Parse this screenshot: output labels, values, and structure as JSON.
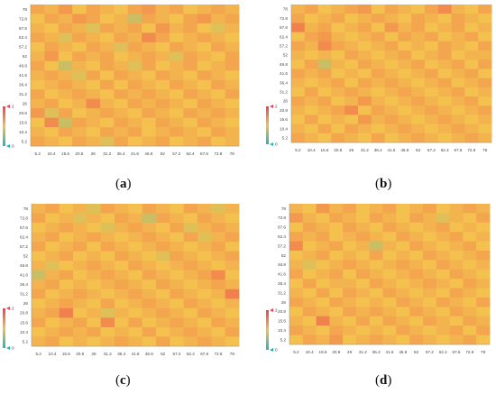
{
  "figure": {
    "panel_labels": [
      "a",
      "b",
      "c",
      "d"
    ]
  },
  "colors": {
    "low": "#1fb8b5",
    "mid": "#f4c04e",
    "high": "#ee3f4f",
    "grid_line": "#e6e6e6"
  },
  "chart_data": [
    {
      "type": "heatmap",
      "x_ticks": [
        "5.2",
        "10.4",
        "15.6",
        "20.8",
        "26",
        "31.2",
        "36.4",
        "41.6",
        "46.8",
        "52",
        "57.2",
        "62.4",
        "67.6",
        "72.8",
        "78"
      ],
      "y_ticks": [
        "78",
        "72.8",
        "67.6",
        "62.4",
        "57.2",
        "52",
        "46.8",
        "41.6",
        "36.4",
        "31.2",
        "26",
        "20.8",
        "15.6",
        "10.4",
        "5.2"
      ],
      "colorbar": {
        "min": 0,
        "max": 2,
        "labels": [
          "2",
          "0"
        ]
      },
      "values": [
        [
          1.2,
          1.1,
          1.3,
          1.0,
          1.2,
          1.1,
          1.0,
          1.2,
          1.3,
          1.1,
          1.2,
          1.0,
          1.1,
          1.2,
          1.1
        ],
        [
          1.0,
          1.2,
          1.1,
          1.3,
          1.2,
          1.0,
          1.1,
          0.8,
          1.2,
          1.1,
          1.0,
          1.2,
          1.3,
          1.1,
          1.2
        ],
        [
          1.1,
          1.0,
          1.2,
          1.1,
          0.9,
          1.2,
          1.1,
          1.2,
          1.0,
          1.3,
          1.1,
          1.2,
          1.0,
          0.9,
          1.1
        ],
        [
          1.2,
          1.1,
          0.9,
          1.2,
          1.1,
          1.0,
          1.2,
          1.1,
          1.4,
          1.2,
          1.0,
          1.1,
          1.2,
          1.1,
          1.0
        ],
        [
          1.0,
          1.2,
          1.1,
          1.0,
          1.2,
          1.1,
          0.9,
          1.2,
          1.1,
          1.0,
          1.2,
          1.1,
          1.0,
          1.2,
          1.1
        ],
        [
          1.1,
          1.3,
          1.0,
          1.2,
          1.1,
          1.2,
          1.0,
          1.1,
          1.2,
          1.1,
          0.9,
          1.2,
          1.1,
          1.0,
          1.2
        ],
        [
          1.2,
          1.0,
          0.8,
          1.1,
          1.0,
          1.2,
          1.1,
          0.9,
          1.2,
          1.0,
          1.1,
          1.2,
          1.0,
          1.1,
          1.2
        ],
        [
          1.1,
          1.2,
          1.1,
          0.9,
          1.2,
          1.0,
          1.2,
          1.1,
          1.0,
          1.2,
          1.1,
          1.0,
          1.2,
          1.1,
          1.0
        ],
        [
          1.0,
          1.1,
          1.2,
          1.1,
          1.0,
          1.2,
          1.0,
          1.2,
          1.1,
          1.0,
          1.2,
          1.1,
          1.0,
          1.2,
          1.1
        ],
        [
          1.2,
          1.0,
          1.1,
          1.2,
          1.1,
          1.0,
          1.2,
          1.1,
          1.2,
          1.1,
          1.0,
          1.2,
          1.1,
          1.0,
          1.2
        ],
        [
          1.1,
          1.2,
          1.0,
          1.1,
          1.4,
          1.1,
          1.0,
          1.2,
          1.1,
          1.2,
          1.1,
          1.0,
          1.2,
          1.1,
          1.0
        ],
        [
          1.3,
          0.9,
          1.2,
          1.0,
          1.1,
          1.2,
          1.1,
          1.0,
          1.2,
          1.1,
          1.0,
          1.2,
          1.1,
          1.2,
          1.1
        ],
        [
          1.0,
          1.4,
          0.8,
          1.2,
          1.1,
          1.0,
          1.2,
          1.1,
          1.0,
          1.2,
          1.1,
          1.0,
          1.2,
          1.1,
          1.0
        ],
        [
          1.1,
          1.0,
          1.2,
          1.1,
          1.0,
          1.2,
          1.1,
          1.2,
          1.0,
          1.1,
          1.2,
          1.1,
          1.0,
          1.2,
          1.1
        ],
        [
          1.2,
          1.1,
          1.0,
          1.2,
          1.1,
          0.9,
          1.2,
          1.0,
          1.1,
          1.2,
          1.0,
          1.1,
          1.2,
          1.0,
          1.1
        ]
      ]
    },
    {
      "type": "heatmap",
      "x_ticks": [
        "5.2",
        "10.4",
        "15.6",
        "20.8",
        "26",
        "31.2",
        "36.4",
        "41.6",
        "46.8",
        "52",
        "57.2",
        "62.4",
        "67.6",
        "72.8",
        "78"
      ],
      "y_ticks": [
        "78",
        "72.8",
        "67.6",
        "62.4",
        "57.2",
        "52",
        "46.8",
        "41.6",
        "36.4",
        "31.2",
        "26",
        "20.8",
        "15.6",
        "10.4",
        "5.2"
      ],
      "colorbar": {
        "min": 0,
        "max": 2,
        "labels": [
          "2",
          "0"
        ]
      },
      "values": [
        [
          1.1,
          1.2,
          1.0,
          1.1,
          1.2,
          1.3,
          1.0,
          1.2,
          1.1,
          1.0,
          1.2,
          1.4,
          1.1,
          1.0,
          1.2
        ],
        [
          1.2,
          1.0,
          1.1,
          1.2,
          1.0,
          1.1,
          1.2,
          1.1,
          1.0,
          1.2,
          1.1,
          1.0,
          1.2,
          1.1,
          1.0
        ],
        [
          1.5,
          1.1,
          1.2,
          1.0,
          1.1,
          1.2,
          1.0,
          1.3,
          1.1,
          1.2,
          1.0,
          1.1,
          1.2,
          1.0,
          1.1
        ],
        [
          1.0,
          1.2,
          1.3,
          1.1,
          1.0,
          1.1,
          1.2,
          1.0,
          1.2,
          1.1,
          1.2,
          1.0,
          1.1,
          1.2,
          1.0
        ],
        [
          1.2,
          1.1,
          1.4,
          1.2,
          1.1,
          1.0,
          1.1,
          1.2,
          1.0,
          1.1,
          1.0,
          1.2,
          1.1,
          1.0,
          1.2
        ],
        [
          1.1,
          1.0,
          1.1,
          1.0,
          1.2,
          1.1,
          1.0,
          1.1,
          1.2,
          1.0,
          1.1,
          1.2,
          1.0,
          1.1,
          1.1
        ],
        [
          1.0,
          1.2,
          0.8,
          1.1,
          1.0,
          1.2,
          1.1,
          1.0,
          1.1,
          1.2,
          1.0,
          1.1,
          1.2,
          1.0,
          1.2
        ],
        [
          1.2,
          1.1,
          1.2,
          1.0,
          1.1,
          1.0,
          1.2,
          1.1,
          1.0,
          1.1,
          1.2,
          1.0,
          1.1,
          1.2,
          1.0
        ],
        [
          1.1,
          1.0,
          1.1,
          1.2,
          1.0,
          1.2,
          1.1,
          1.2,
          1.1,
          1.0,
          1.1,
          1.2,
          1.0,
          1.1,
          1.2
        ],
        [
          1.0,
          1.2,
          1.0,
          1.1,
          1.2,
          1.1,
          1.0,
          1.1,
          1.2,
          1.1,
          1.0,
          1.1,
          1.2,
          1.0,
          1.1
        ],
        [
          1.2,
          1.1,
          1.2,
          1.0,
          1.1,
          1.3,
          1.1,
          1.0,
          1.1,
          1.2,
          1.1,
          1.0,
          1.1,
          1.2,
          1.0
        ],
        [
          1.1,
          1.0,
          1.1,
          1.2,
          1.4,
          1.0,
          1.2,
          1.1,
          1.0,
          1.1,
          1.2,
          1.1,
          1.0,
          1.1,
          1.2
        ],
        [
          1.0,
          1.2,
          1.0,
          1.1,
          1.0,
          1.3,
          1.1,
          1.2,
          1.1,
          1.0,
          1.1,
          1.2,
          1.1,
          1.0,
          1.1
        ],
        [
          1.1,
          1.0,
          1.2,
          1.0,
          1.2,
          1.1,
          1.0,
          1.1,
          1.2,
          1.1,
          1.0,
          1.1,
          1.2,
          1.1,
          1.0
        ],
        [
          1.2,
          1.1,
          1.0,
          1.2,
          1.1,
          1.0,
          1.2,
          1.0,
          1.1,
          1.2,
          1.1,
          1.0,
          1.1,
          1.2,
          1.1
        ]
      ]
    },
    {
      "type": "heatmap",
      "x_ticks": [
        "5.2",
        "10.4",
        "15.6",
        "20.8",
        "26",
        "31.2",
        "36.4",
        "41.6",
        "46.8",
        "52",
        "57.2",
        "62.4",
        "67.6",
        "72.8",
        "78"
      ],
      "y_ticks": [
        "78",
        "72.8",
        "67.6",
        "62.4",
        "57.2",
        "52",
        "46.8",
        "41.6",
        "36.4",
        "31.2",
        "26",
        "20.8",
        "15.6",
        "10.4",
        "5.2"
      ],
      "colorbar": {
        "min": 0,
        "max": 2,
        "labels": [
          "2",
          "0"
        ]
      },
      "values": [
        [
          1.1,
          1.2,
          1.0,
          1.1,
          0.9,
          1.2,
          1.1,
          1.0,
          1.2,
          1.1,
          1.0,
          1.2,
          1.1,
          0.9,
          1.1
        ],
        [
          1.2,
          1.0,
          1.1,
          0.9,
          1.1,
          1.0,
          1.2,
          1.1,
          0.8,
          1.2,
          1.1,
          1.0,
          1.2,
          1.1,
          1.0
        ],
        [
          1.0,
          1.1,
          1.2,
          1.1,
          1.0,
          0.9,
          1.1,
          1.2,
          1.1,
          1.0,
          1.2,
          0.9,
          1.1,
          1.2,
          1.1
        ],
        [
          1.1,
          1.2,
          1.0,
          1.1,
          1.2,
          1.1,
          1.0,
          1.1,
          1.2,
          1.1,
          1.0,
          1.2,
          0.9,
          1.1,
          1.2
        ],
        [
          1.2,
          1.0,
          1.1,
          1.2,
          1.0,
          1.2,
          1.1,
          1.0,
          1.1,
          1.2,
          1.1,
          1.0,
          1.1,
          1.2,
          1.0
        ],
        [
          1.0,
          1.1,
          1.2,
          1.0,
          1.1,
          1.0,
          1.2,
          1.1,
          1.0,
          0.9,
          1.2,
          1.1,
          1.0,
          1.1,
          1.2
        ],
        [
          1.1,
          0.9,
          1.0,
          1.1,
          1.2,
          1.1,
          1.0,
          1.2,
          1.1,
          1.0,
          1.1,
          1.2,
          1.1,
          1.0,
          1.1
        ],
        [
          0.8,
          1.1,
          1.2,
          1.0,
          1.1,
          1.2,
          1.1,
          1.0,
          1.2,
          1.1,
          1.0,
          1.1,
          1.2,
          1.4,
          1.0
        ],
        [
          1.1,
          1.2,
          1.0,
          1.1,
          1.0,
          1.1,
          1.2,
          1.1,
          1.0,
          1.2,
          1.1,
          1.0,
          1.1,
          1.2,
          1.1
        ],
        [
          1.2,
          1.0,
          1.1,
          1.2,
          1.1,
          1.0,
          1.1,
          1.2,
          1.1,
          1.0,
          1.2,
          1.1,
          1.0,
          1.1,
          1.5
        ],
        [
          1.0,
          1.1,
          1.2,
          1.1,
          1.0,
          1.2,
          1.0,
          1.1,
          1.2,
          1.1,
          1.0,
          1.2,
          1.1,
          1.0,
          1.1
        ],
        [
          1.1,
          1.2,
          1.5,
          1.0,
          1.1,
          0.9,
          1.1,
          1.0,
          1.1,
          1.2,
          1.1,
          1.0,
          1.2,
          1.1,
          1.0
        ],
        [
          1.2,
          1.0,
          1.1,
          1.2,
          1.0,
          1.4,
          1.0,
          1.2,
          1.0,
          1.1,
          1.2,
          1.1,
          1.0,
          1.2,
          1.1
        ],
        [
          1.0,
          1.1,
          1.2,
          1.1,
          1.2,
          1.0,
          1.1,
          1.0,
          1.2,
          1.0,
          1.1,
          1.2,
          1.1,
          1.0,
          1.2
        ],
        [
          1.1,
          1.2,
          1.0,
          1.1,
          1.0,
          1.1,
          1.2,
          1.1,
          1.0,
          1.2,
          1.0,
          1.1,
          1.2,
          1.1,
          1.0
        ]
      ]
    },
    {
      "type": "heatmap",
      "x_ticks": [
        "5.2",
        "10.4",
        "15.6",
        "20.8",
        "26",
        "31.2",
        "36.4",
        "41.6",
        "46.8",
        "52",
        "57.2",
        "62.4",
        "67.6",
        "72.8",
        "78"
      ],
      "y_ticks": [
        "78",
        "72.8",
        "67.6",
        "62.4",
        "57.2",
        "52",
        "46.8",
        "41.6",
        "36.4",
        "31.2",
        "26",
        "20.8",
        "15.6",
        "10.4",
        "5.2"
      ],
      "colorbar": {
        "min": 0,
        "max": 2,
        "labels": [
          "2",
          "0"
        ]
      },
      "values": [
        [
          1.1,
          1.0,
          1.3,
          1.1,
          1.2,
          1.0,
          1.1,
          1.2,
          1.0,
          1.1,
          1.2,
          1.0,
          1.1,
          1.2,
          1.1
        ],
        [
          1.3,
          1.1,
          1.0,
          1.2,
          1.1,
          1.0,
          1.2,
          1.1,
          1.0,
          1.2,
          1.1,
          0.9,
          1.1,
          1.0,
          1.2
        ],
        [
          1.0,
          1.2,
          1.1,
          1.0,
          1.2,
          1.1,
          1.0,
          1.2,
          1.1,
          1.0,
          1.1,
          1.2,
          1.0,
          1.1,
          1.0
        ],
        [
          1.2,
          1.1,
          1.2,
          1.0,
          1.1,
          1.2,
          1.1,
          1.0,
          1.2,
          1.1,
          1.0,
          1.1,
          1.2,
          1.0,
          1.1
        ],
        [
          1.4,
          1.0,
          1.1,
          1.2,
          1.0,
          1.1,
          0.8,
          1.1,
          1.0,
          1.2,
          1.1,
          1.0,
          1.1,
          1.2,
          1.0
        ],
        [
          1.0,
          1.1,
          1.2,
          1.0,
          1.1,
          1.0,
          1.2,
          1.0,
          1.1,
          1.0,
          1.2,
          1.1,
          1.0,
          1.1,
          1.2
        ],
        [
          1.1,
          0.9,
          1.0,
          1.1,
          1.2,
          1.1,
          1.0,
          1.1,
          1.2,
          1.1,
          1.0,
          1.2,
          1.1,
          1.0,
          1.1
        ],
        [
          1.2,
          1.0,
          1.1,
          1.2,
          1.0,
          1.2,
          1.1,
          1.0,
          1.1,
          1.2,
          1.1,
          1.0,
          1.2,
          1.1,
          1.0
        ],
        [
          1.0,
          1.2,
          1.0,
          1.1,
          1.1,
          1.0,
          1.2,
          1.1,
          1.0,
          1.1,
          1.2,
          1.1,
          1.0,
          1.2,
          1.1
        ],
        [
          1.1,
          1.0,
          1.2,
          1.0,
          1.2,
          1.1,
          1.0,
          1.2,
          1.1,
          1.0,
          1.1,
          1.0,
          1.2,
          1.1,
          1.0
        ],
        [
          1.2,
          1.1,
          1.0,
          1.2,
          1.1,
          1.0,
          1.1,
          1.0,
          1.2,
          1.1,
          1.0,
          1.2,
          1.1,
          1.0,
          1.2
        ],
        [
          1.0,
          1.2,
          1.1,
          1.0,
          1.2,
          1.1,
          1.2,
          1.1,
          1.0,
          1.2,
          1.1,
          1.0,
          1.2,
          1.1,
          1.0
        ],
        [
          1.1,
          1.0,
          1.5,
          1.1,
          1.0,
          1.2,
          1.0,
          1.2,
          1.1,
          1.0,
          1.2,
          1.1,
          1.0,
          1.2,
          1.1
        ],
        [
          1.2,
          1.1,
          1.0,
          1.2,
          1.1,
          1.0,
          1.1,
          1.0,
          1.2,
          1.1,
          1.0,
          1.1,
          1.2,
          1.0,
          1.2
        ],
        [
          1.0,
          1.2,
          1.1,
          1.3,
          1.0,
          1.1,
          1.2,
          1.1,
          1.0,
          1.2,
          1.1,
          1.0,
          1.1,
          1.2,
          1.0
        ]
      ]
    }
  ]
}
